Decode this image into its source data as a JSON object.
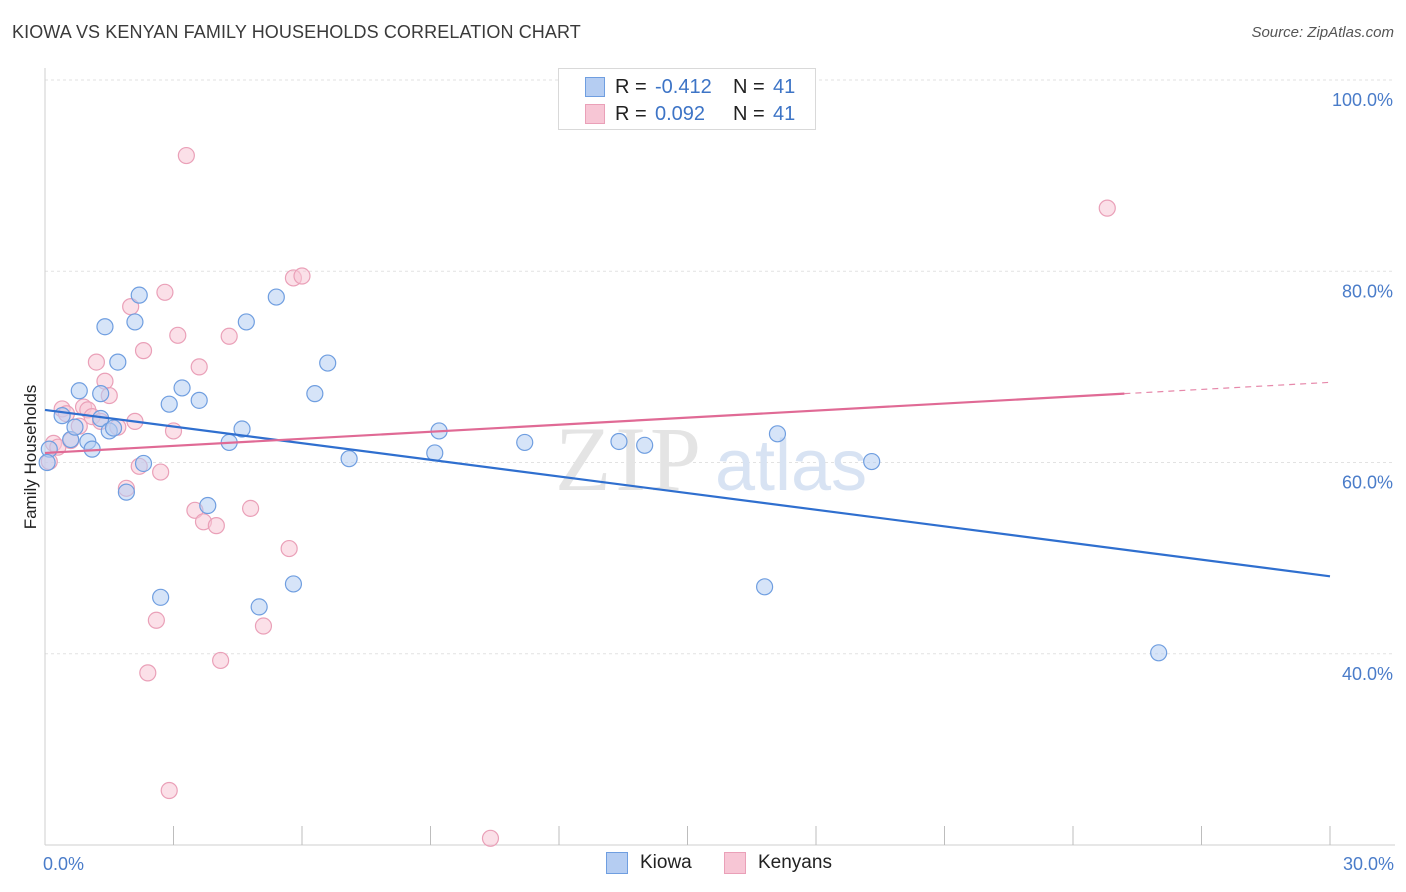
{
  "title": "KIOWA VS KENYAN FAMILY HOUSEHOLDS CORRELATION CHART",
  "source": "Source: ZipAtlas.com",
  "watermark": {
    "zip": "ZIP",
    "atlas": "atlas"
  },
  "legend": {
    "rows": [
      {
        "r_label": "R =",
        "r_value": "-0.412",
        "n_label": "N =",
        "n_value": "41"
      },
      {
        "r_label": "R =",
        "r_value": "0.092",
        "n_label": "N =",
        "n_value": "41"
      }
    ]
  },
  "colors": {
    "kiowa_fill": "#b5cdf2",
    "kiowa_stroke": "#6f9ee0",
    "kiowa_line": "#2f6fcf",
    "kenyan_fill": "#f7c6d5",
    "kenyan_stroke": "#eaa0b8",
    "kenyan_line": "#e06a95",
    "grid": "#e2e2e2",
    "tick_text": "#4a7cc9"
  },
  "chart_data": {
    "type": "scatter",
    "ylabel": "Family Households",
    "xlim": [
      0,
      30
    ],
    "ylim": [
      20.0,
      100.0
    ],
    "y_ticks": [
      {
        "value": 100.0,
        "label": "100.0%"
      },
      {
        "value": 80.0,
        "label": "80.0%"
      },
      {
        "value": 60.0,
        "label": "60.0%"
      },
      {
        "value": 40.0,
        "label": "40.0%"
      }
    ],
    "x_tick_labels": [
      {
        "value": 0,
        "label": "0.0%"
      },
      {
        "value": 30,
        "label": "30.0%"
      }
    ],
    "x_minor_ticks": [
      3,
      6,
      9,
      12,
      15,
      18,
      21,
      24,
      27,
      30
    ],
    "grid": true,
    "legend_position": "top-center",
    "series": [
      {
        "name": "Kiowa",
        "points": [
          [
            0.1,
            61.4
          ],
          [
            0.4,
            64.9
          ],
          [
            0.6,
            62.4
          ],
          [
            0.7,
            63.7
          ],
          [
            0.8,
            67.5
          ],
          [
            1.0,
            62.2
          ],
          [
            1.1,
            61.4
          ],
          [
            1.3,
            64.6
          ],
          [
            1.3,
            67.2
          ],
          [
            1.4,
            74.2
          ],
          [
            1.5,
            63.3
          ],
          [
            1.6,
            63.6
          ],
          [
            1.7,
            70.5
          ],
          [
            1.9,
            56.9
          ],
          [
            2.1,
            74.7
          ],
          [
            2.2,
            77.5
          ],
          [
            2.3,
            59.9
          ],
          [
            2.7,
            45.9
          ],
          [
            2.9,
            66.1
          ],
          [
            3.2,
            67.8
          ],
          [
            3.6,
            66.5
          ],
          [
            3.8,
            55.5
          ],
          [
            4.3,
            62.1
          ],
          [
            4.6,
            63.5
          ],
          [
            4.7,
            74.7
          ],
          [
            5.0,
            44.9
          ],
          [
            5.4,
            77.3
          ],
          [
            5.8,
            47.3
          ],
          [
            6.3,
            67.2
          ],
          [
            6.6,
            70.4
          ],
          [
            7.1,
            60.4
          ],
          [
            9.1,
            61.0
          ],
          [
            9.2,
            63.3
          ],
          [
            11.2,
            62.1
          ],
          [
            13.4,
            62.2
          ],
          [
            14.0,
            61.8
          ],
          [
            16.8,
            47.0
          ],
          [
            17.1,
            63.0
          ],
          [
            19.3,
            60.1
          ],
          [
            26.0,
            40.1
          ],
          [
            0.05,
            60.0
          ]
        ]
      },
      {
        "name": "Kenyans",
        "points": [
          [
            0.1,
            60.1
          ],
          [
            0.2,
            62.0
          ],
          [
            0.3,
            61.6
          ],
          [
            0.4,
            65.6
          ],
          [
            0.5,
            65.1
          ],
          [
            0.6,
            62.3
          ],
          [
            0.8,
            63.8
          ],
          [
            0.9,
            65.8
          ],
          [
            1.0,
            65.5
          ],
          [
            1.1,
            64.8
          ],
          [
            1.2,
            70.5
          ],
          [
            1.3,
            64.3
          ],
          [
            1.4,
            68.5
          ],
          [
            1.5,
            67.0
          ],
          [
            1.7,
            63.7
          ],
          [
            1.9,
            57.3
          ],
          [
            2.0,
            76.3
          ],
          [
            2.1,
            64.3
          ],
          [
            2.2,
            59.6
          ],
          [
            2.3,
            71.7
          ],
          [
            2.4,
            38.0
          ],
          [
            2.6,
            43.5
          ],
          [
            2.7,
            59.0
          ],
          [
            2.8,
            77.8
          ],
          [
            2.9,
            25.7
          ],
          [
            3.0,
            63.3
          ],
          [
            3.1,
            73.3
          ],
          [
            3.3,
            92.1
          ],
          [
            3.5,
            55.0
          ],
          [
            3.6,
            70.0
          ],
          [
            3.7,
            53.8
          ],
          [
            4.0,
            53.4
          ],
          [
            4.1,
            39.3
          ],
          [
            4.3,
            73.2
          ],
          [
            4.8,
            55.2
          ],
          [
            5.1,
            42.9
          ],
          [
            5.7,
            51.0
          ],
          [
            5.8,
            79.3
          ],
          [
            6.0,
            79.5
          ],
          [
            10.4,
            20.7
          ],
          [
            24.8,
            86.6
          ]
        ]
      }
    ],
    "trend_lines": [
      {
        "series": "Kiowa",
        "x": [
          0.0,
          30.0
        ],
        "y": [
          65.5,
          48.1
        ],
        "dashed_x": []
      },
      {
        "series": "Kenyans",
        "x": [
          0.0,
          25.2
        ],
        "y": [
          61.0,
          67.2
        ],
        "dashed_x": [
          25.2,
          30.0
        ]
      }
    ]
  },
  "bottom_legend": [
    {
      "label": "Kiowa"
    },
    {
      "label": "Kenyans"
    }
  ]
}
